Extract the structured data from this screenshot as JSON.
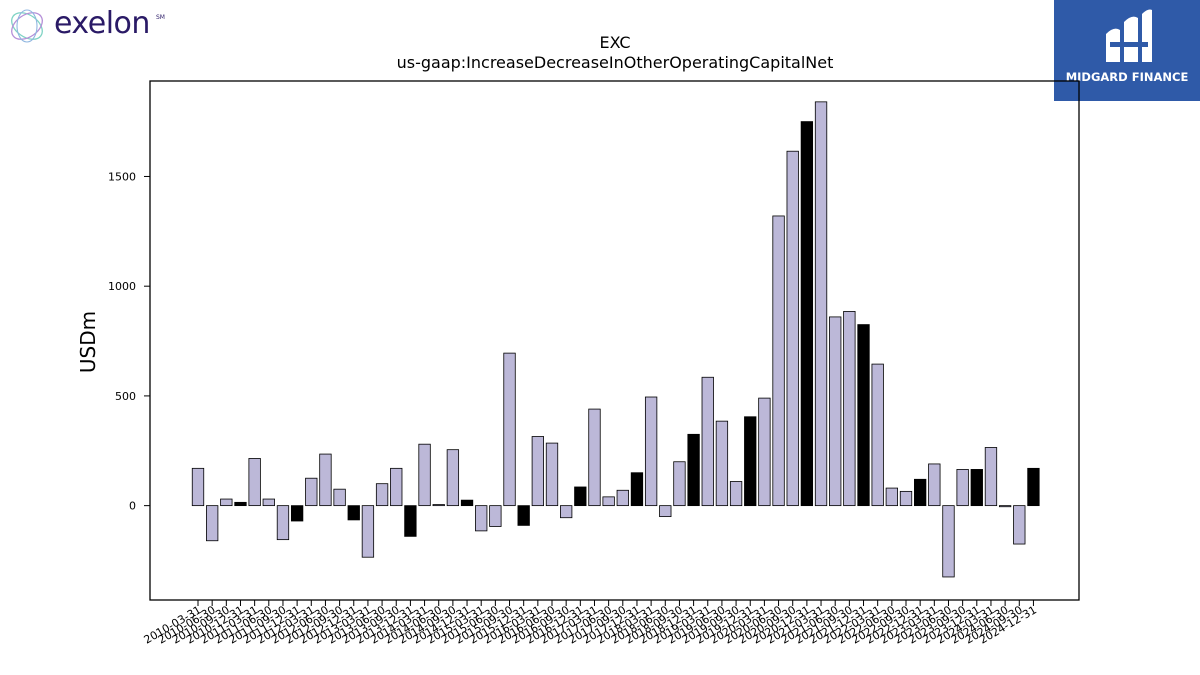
{
  "brand": {
    "name": "exelon",
    "mark": "SM"
  },
  "partner": {
    "name": "MIDGARD FINANCE"
  },
  "colors": {
    "bar_default": "#bcb8d8",
    "bar_highlight": "#000000",
    "badge_bg": "#2f5aa8",
    "brand_text": "#2a1a66"
  },
  "chart_data": {
    "type": "bar",
    "title": "EXC",
    "subtitle": "us-gaap:IncreaseDecreaseInOtherOperatingCapitalNet",
    "ylabel": "USDm",
    "xlabel": "",
    "ylim": [
      -430,
      1935
    ],
    "yticks": [
      0,
      500,
      1000,
      1500
    ],
    "grid": false,
    "categories": [
      "2010-03-31",
      "2010-06-30",
      "2010-09-30",
      "2010-12-31",
      "2011-03-31",
      "2011-06-30",
      "2011-09-30",
      "2011-12-31",
      "2012-03-31",
      "2012-06-30",
      "2012-09-30",
      "2012-12-31",
      "2013-03-31",
      "2013-06-30",
      "2013-09-30",
      "2013-12-31",
      "2014-03-31",
      "2014-06-30",
      "2014-09-30",
      "2014-12-31",
      "2015-03-31",
      "2015-06-30",
      "2015-09-30",
      "2015-12-31",
      "2016-03-31",
      "2016-06-30",
      "2016-09-30",
      "2016-12-31",
      "2017-03-31",
      "2017-06-30",
      "2017-09-30",
      "2017-12-31",
      "2018-03-31",
      "2018-06-30",
      "2018-09-30",
      "2018-12-31",
      "2019-03-31",
      "2019-06-30",
      "2019-09-30",
      "2019-12-31",
      "2020-03-31",
      "2020-06-30",
      "2020-09-30",
      "2020-12-31",
      "2021-03-31",
      "2021-06-30",
      "2021-09-30",
      "2021-12-31",
      "2022-03-31",
      "2022-06-30",
      "2022-09-30",
      "2022-12-31",
      "2023-03-31",
      "2023-06-30",
      "2023-09-30",
      "2023-12-31",
      "2024-03-31",
      "2024-06-30",
      "2024-09-30",
      "2024-12-31"
    ],
    "values": [
      170,
      -160,
      30,
      15,
      215,
      30,
      -155,
      -70,
      125,
      235,
      75,
      -65,
      -235,
      100,
      170,
      -140,
      280,
      5,
      255,
      25,
      -115,
      -95,
      695,
      -90,
      315,
      285,
      -55,
      85,
      440,
      40,
      70,
      150,
      495,
      -50,
      200,
      325,
      585,
      385,
      110,
      405,
      490,
      1320,
      1615,
      1750,
      1840,
      860,
      885,
      825,
      645,
      80,
      65,
      120,
      190,
      -325,
      165,
      165,
      265,
      -5,
      -175,
      170
    ],
    "highlight": [
      false,
      false,
      false,
      true,
      false,
      false,
      false,
      true,
      false,
      false,
      false,
      true,
      false,
      false,
      false,
      true,
      false,
      false,
      false,
      true,
      false,
      false,
      false,
      true,
      false,
      false,
      false,
      true,
      false,
      false,
      false,
      true,
      false,
      false,
      false,
      true,
      false,
      false,
      false,
      true,
      false,
      false,
      false,
      true,
      false,
      false,
      false,
      true,
      false,
      false,
      false,
      true,
      false,
      false,
      false,
      true,
      false,
      false,
      false,
      true
    ]
  }
}
